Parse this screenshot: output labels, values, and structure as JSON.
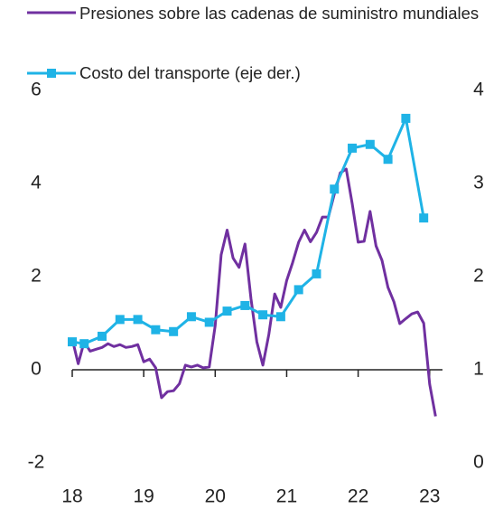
{
  "chart_data": {
    "type": "line",
    "xlim": [
      18,
      23.18
    ],
    "xticks": [
      18,
      19,
      20,
      21,
      22,
      23
    ],
    "ylim": [
      -2,
      6
    ],
    "yticks": [
      -2,
      0,
      2,
      4,
      6
    ],
    "y2lim": [
      0,
      4
    ],
    "y2ticks": [
      0,
      1,
      2,
      3,
      4
    ],
    "series": [
      {
        "name": "Presiones sobre las cadenas de suministro mundiales",
        "color": "#7030a0",
        "marker": false,
        "x": [
          18,
          18.083,
          18.167,
          18.25,
          18.333,
          18.417,
          18.5,
          18.583,
          18.667,
          18.75,
          18.833,
          18.917,
          19,
          19.083,
          19.167,
          19.25,
          19.333,
          19.417,
          19.5,
          19.583,
          19.667,
          19.75,
          19.833,
          19.917,
          20,
          20.083,
          20.167,
          20.25,
          20.333,
          20.417,
          20.5,
          20.583,
          20.667,
          20.75,
          20.833,
          20.917,
          21,
          21.083,
          21.167,
          21.25,
          21.333,
          21.417,
          21.5,
          21.583,
          21.667,
          21.75,
          21.833,
          21.917,
          22,
          22.083,
          22.167,
          22.25,
          22.333,
          22.417,
          22.5,
          22.583,
          22.667,
          22.75,
          22.833,
          22.917,
          23,
          23.083
        ],
        "values": [
          0.66,
          0.13,
          0.6,
          0.4,
          0.44,
          0.48,
          0.56,
          0.5,
          0.54,
          0.48,
          0.5,
          0.54,
          0.17,
          0.23,
          0.04,
          -0.6,
          -0.47,
          -0.45,
          -0.3,
          0.1,
          0.06,
          0.1,
          0.04,
          0.06,
          0.95,
          2.47,
          3.0,
          2.4,
          2.2,
          2.7,
          1.53,
          0.6,
          0.1,
          0.76,
          1.63,
          1.34,
          1.92,
          2.3,
          2.74,
          3.0,
          2.75,
          2.95,
          3.28,
          3.28,
          3.77,
          4.23,
          4.31,
          3.57,
          2.74,
          2.76,
          3.4,
          2.66,
          2.35,
          1.77,
          1.46,
          0.99,
          1.1,
          1.2,
          1.24,
          1.0,
          -0.31,
          -1.0
        ]
      },
      {
        "name": "Costo del transporte (eje der.)",
        "color": "#1fb3e6",
        "marker": true,
        "axis": "y2",
        "x": [
          18,
          18.167,
          18.417,
          18.667,
          18.917,
          19.167,
          19.417,
          19.667,
          19.917,
          20.167,
          20.417,
          20.667,
          20.917,
          21.167,
          21.417,
          21.667,
          21.917,
          22.167,
          22.417,
          22.667,
          22.917
        ],
        "values": [
          1.3,
          1.28,
          1.36,
          1.54,
          1.54,
          1.43,
          1.41,
          1.57,
          1.51,
          1.63,
          1.69,
          1.59,
          1.57,
          1.86,
          2.03,
          2.94,
          3.38,
          3.42,
          3.26,
          3.7,
          2.63
        ]
      }
    ]
  }
}
